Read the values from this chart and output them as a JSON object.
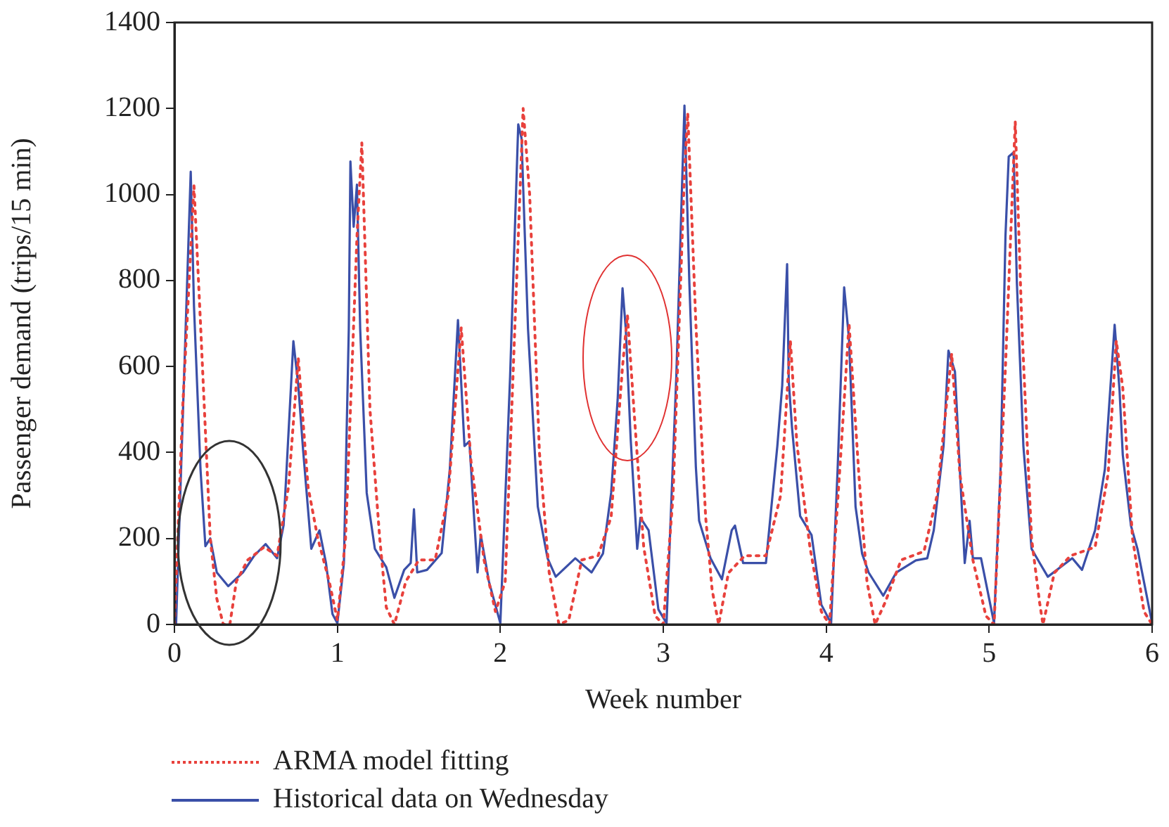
{
  "chart_data": {
    "type": "line",
    "xlabel": "Week number",
    "ylabel": "Passenger demand (trips/15 min)",
    "xlim": [
      0,
      6
    ],
    "xticks": [
      0,
      1,
      2,
      3,
      4,
      5,
      6
    ],
    "ylim": [
      0,
      1400
    ],
    "yticks": [
      0,
      200,
      400,
      600,
      800,
      1000,
      1200,
      1400
    ],
    "grid": false,
    "legend": "bottom",
    "marker": "none",
    "series": [
      {
        "name": "ARMA model fitting",
        "color": "#e8413c",
        "line_style": "dotted",
        "x": [
          0,
          0.05,
          0.12,
          0.16,
          0.22,
          0.26,
          0.3,
          0.34,
          0.38,
          0.45,
          0.55,
          0.63,
          0.7,
          0.76,
          0.82,
          0.88,
          0.95,
          1,
          1.05,
          1.12,
          1.15,
          1.2,
          1.26,
          1.3,
          1.35,
          1.42,
          1.5,
          1.6,
          1.68,
          1.76,
          1.82,
          1.9,
          1.97,
          2.03,
          2.1,
          2.14,
          2.18,
          2.24,
          2.3,
          2.36,
          2.42,
          2.5,
          2.6,
          2.68,
          2.75,
          2.78,
          2.82,
          2.88,
          2.95,
          3,
          3.06,
          3.13,
          3.15,
          3.2,
          3.26,
          3.3,
          3.34,
          3.4,
          3.5,
          3.63,
          3.72,
          3.78,
          3.82,
          3.9,
          3.97,
          4.02,
          4.09,
          4.14,
          4.2,
          4.25,
          4.3,
          4.36,
          4.46,
          4.6,
          4.68,
          4.77,
          4.82,
          4.9,
          4.98,
          5.03,
          5.1,
          5.16,
          5.2,
          5.26,
          5.31,
          5.33,
          5.4,
          5.5,
          5.65,
          5.73,
          5.78,
          5.82,
          5.88,
          5.95,
          6
        ],
        "values": [
          0,
          500,
          1020,
          700,
          200,
          60,
          0,
          0,
          100,
          150,
          180,
          160,
          320,
          620,
          320,
          200,
          100,
          10,
          200,
          900,
          1120,
          500,
          200,
          40,
          0,
          100,
          150,
          150,
          300,
          690,
          380,
          150,
          30,
          100,
          800,
          1200,
          1000,
          400,
          120,
          0,
          10,
          150,
          160,
          250,
          600,
          720,
          500,
          180,
          20,
          0,
          300,
          1050,
          1190,
          700,
          250,
          80,
          0,
          120,
          160,
          160,
          300,
          660,
          420,
          180,
          30,
          0,
          400,
          700,
          350,
          100,
          0,
          50,
          150,
          170,
          300,
          630,
          350,
          150,
          20,
          0,
          600,
          1170,
          700,
          200,
          50,
          0,
          120,
          160,
          180,
          350,
          660,
          550,
          200,
          30,
          0
        ]
      },
      {
        "name": "Historical data on Wednesday",
        "color": "#3a4fa8",
        "line_style": "solid",
        "x": [
          0.01,
          0.1,
          0.12,
          0.16,
          0.19,
          0.22,
          0.26,
          0.33,
          0.42,
          0.49,
          0.56,
          0.63,
          0.67,
          0.73,
          0.76,
          0.79,
          0.84,
          0.89,
          0.93,
          0.97,
          1,
          1.04,
          1.07,
          1.08,
          1.1,
          1.12,
          1.14,
          1.18,
          1.23,
          1.3,
          1.35,
          1.41,
          1.45,
          1.47,
          1.49,
          1.55,
          1.64,
          1.69,
          1.74,
          1.78,
          1.81,
          1.86,
          1.88,
          1.93,
          2,
          2.06,
          2.11,
          2.13,
          2.17,
          2.23,
          2.29,
          2.34,
          2.46,
          2.56,
          2.63,
          2.68,
          2.72,
          2.75,
          2.77,
          2.8,
          2.84,
          2.86,
          2.91,
          2.97,
          3.02,
          3.08,
          3.13,
          3.16,
          3.2,
          3.22,
          3.29,
          3.36,
          3.42,
          3.44,
          3.49,
          3.63,
          3.7,
          3.73,
          3.76,
          3.77,
          3.79,
          3.84,
          3.91,
          3.97,
          4.03,
          4.07,
          4.11,
          4.14,
          4.18,
          4.22,
          4.26,
          4.35,
          4.43,
          4.55,
          4.62,
          4.66,
          4.72,
          4.75,
          4.79,
          4.82,
          4.85,
          4.88,
          4.9,
          4.95,
          5.03,
          5.07,
          5.1,
          5.12,
          5.15,
          5.17,
          5.21,
          5.26,
          5.31,
          5.36,
          5.51,
          5.57,
          5.65,
          5.71,
          5.77,
          5.8,
          5.82,
          5.87,
          5.91,
          6
        ],
        "values": [
          0,
          1053,
          740,
          361,
          182,
          200,
          121,
          89,
          121,
          160,
          187,
          154,
          231,
          659,
          556,
          404,
          176,
          219,
          143,
          24,
          3,
          143,
          687,
          1077,
          925,
          1023,
          687,
          306,
          176,
          133,
          62,
          127,
          143,
          268,
          121,
          127,
          166,
          361,
          708,
          415,
          426,
          121,
          208,
          100,
          3,
          577,
          1163,
          1131,
          687,
          274,
          154,
          111,
          154,
          121,
          165,
          306,
          523,
          782,
          687,
          431,
          176,
          248,
          219,
          35,
          3,
          577,
          1207,
          795,
          366,
          241,
          154,
          105,
          219,
          230,
          143,
          143,
          415,
          556,
          838,
          566,
          458,
          252,
          208,
          46,
          3,
          361,
          784,
          664,
          274,
          165,
          121,
          67,
          121,
          149,
          154,
          219,
          415,
          637,
          588,
          361,
          143,
          241,
          154,
          154,
          3,
          361,
          903,
          1088,
          1098,
          795,
          415,
          176,
          143,
          111,
          154,
          127,
          219,
          361,
          697,
          545,
          394,
          230,
          176,
          3
        ]
      }
    ]
  }
}
